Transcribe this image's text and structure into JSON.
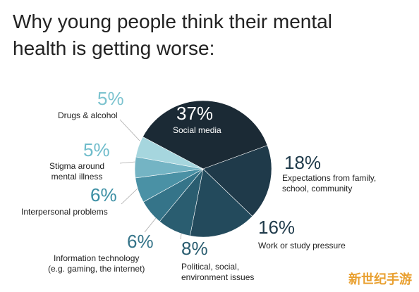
{
  "chart_data": {
    "type": "pie",
    "title": "Why young people think their mental health is getting worse:",
    "categories": [
      "Social media",
      "Expectations from family,\nschool, community",
      "Work or study pressure",
      "Political, social,\nenvironment issues",
      "Information technology\n(e.g. gaming, the internet)",
      "Interpersonal problems",
      "Stigma around\nmental illness",
      "Drugs & alcohol"
    ],
    "values": [
      37,
      18,
      16,
      8,
      6,
      6,
      5,
      5
    ],
    "value_labels": [
      "37%",
      "18%",
      "16%",
      "8%",
      "6%",
      "6%",
      "5%",
      "5%"
    ],
    "colors": [
      "#1b2a35",
      "#1f3a4a",
      "#234a5c",
      "#2a5d70",
      "#357489",
      "#4a91a5",
      "#74b4c4",
      "#a6d6de"
    ],
    "watermark": "新世纪手游"
  }
}
